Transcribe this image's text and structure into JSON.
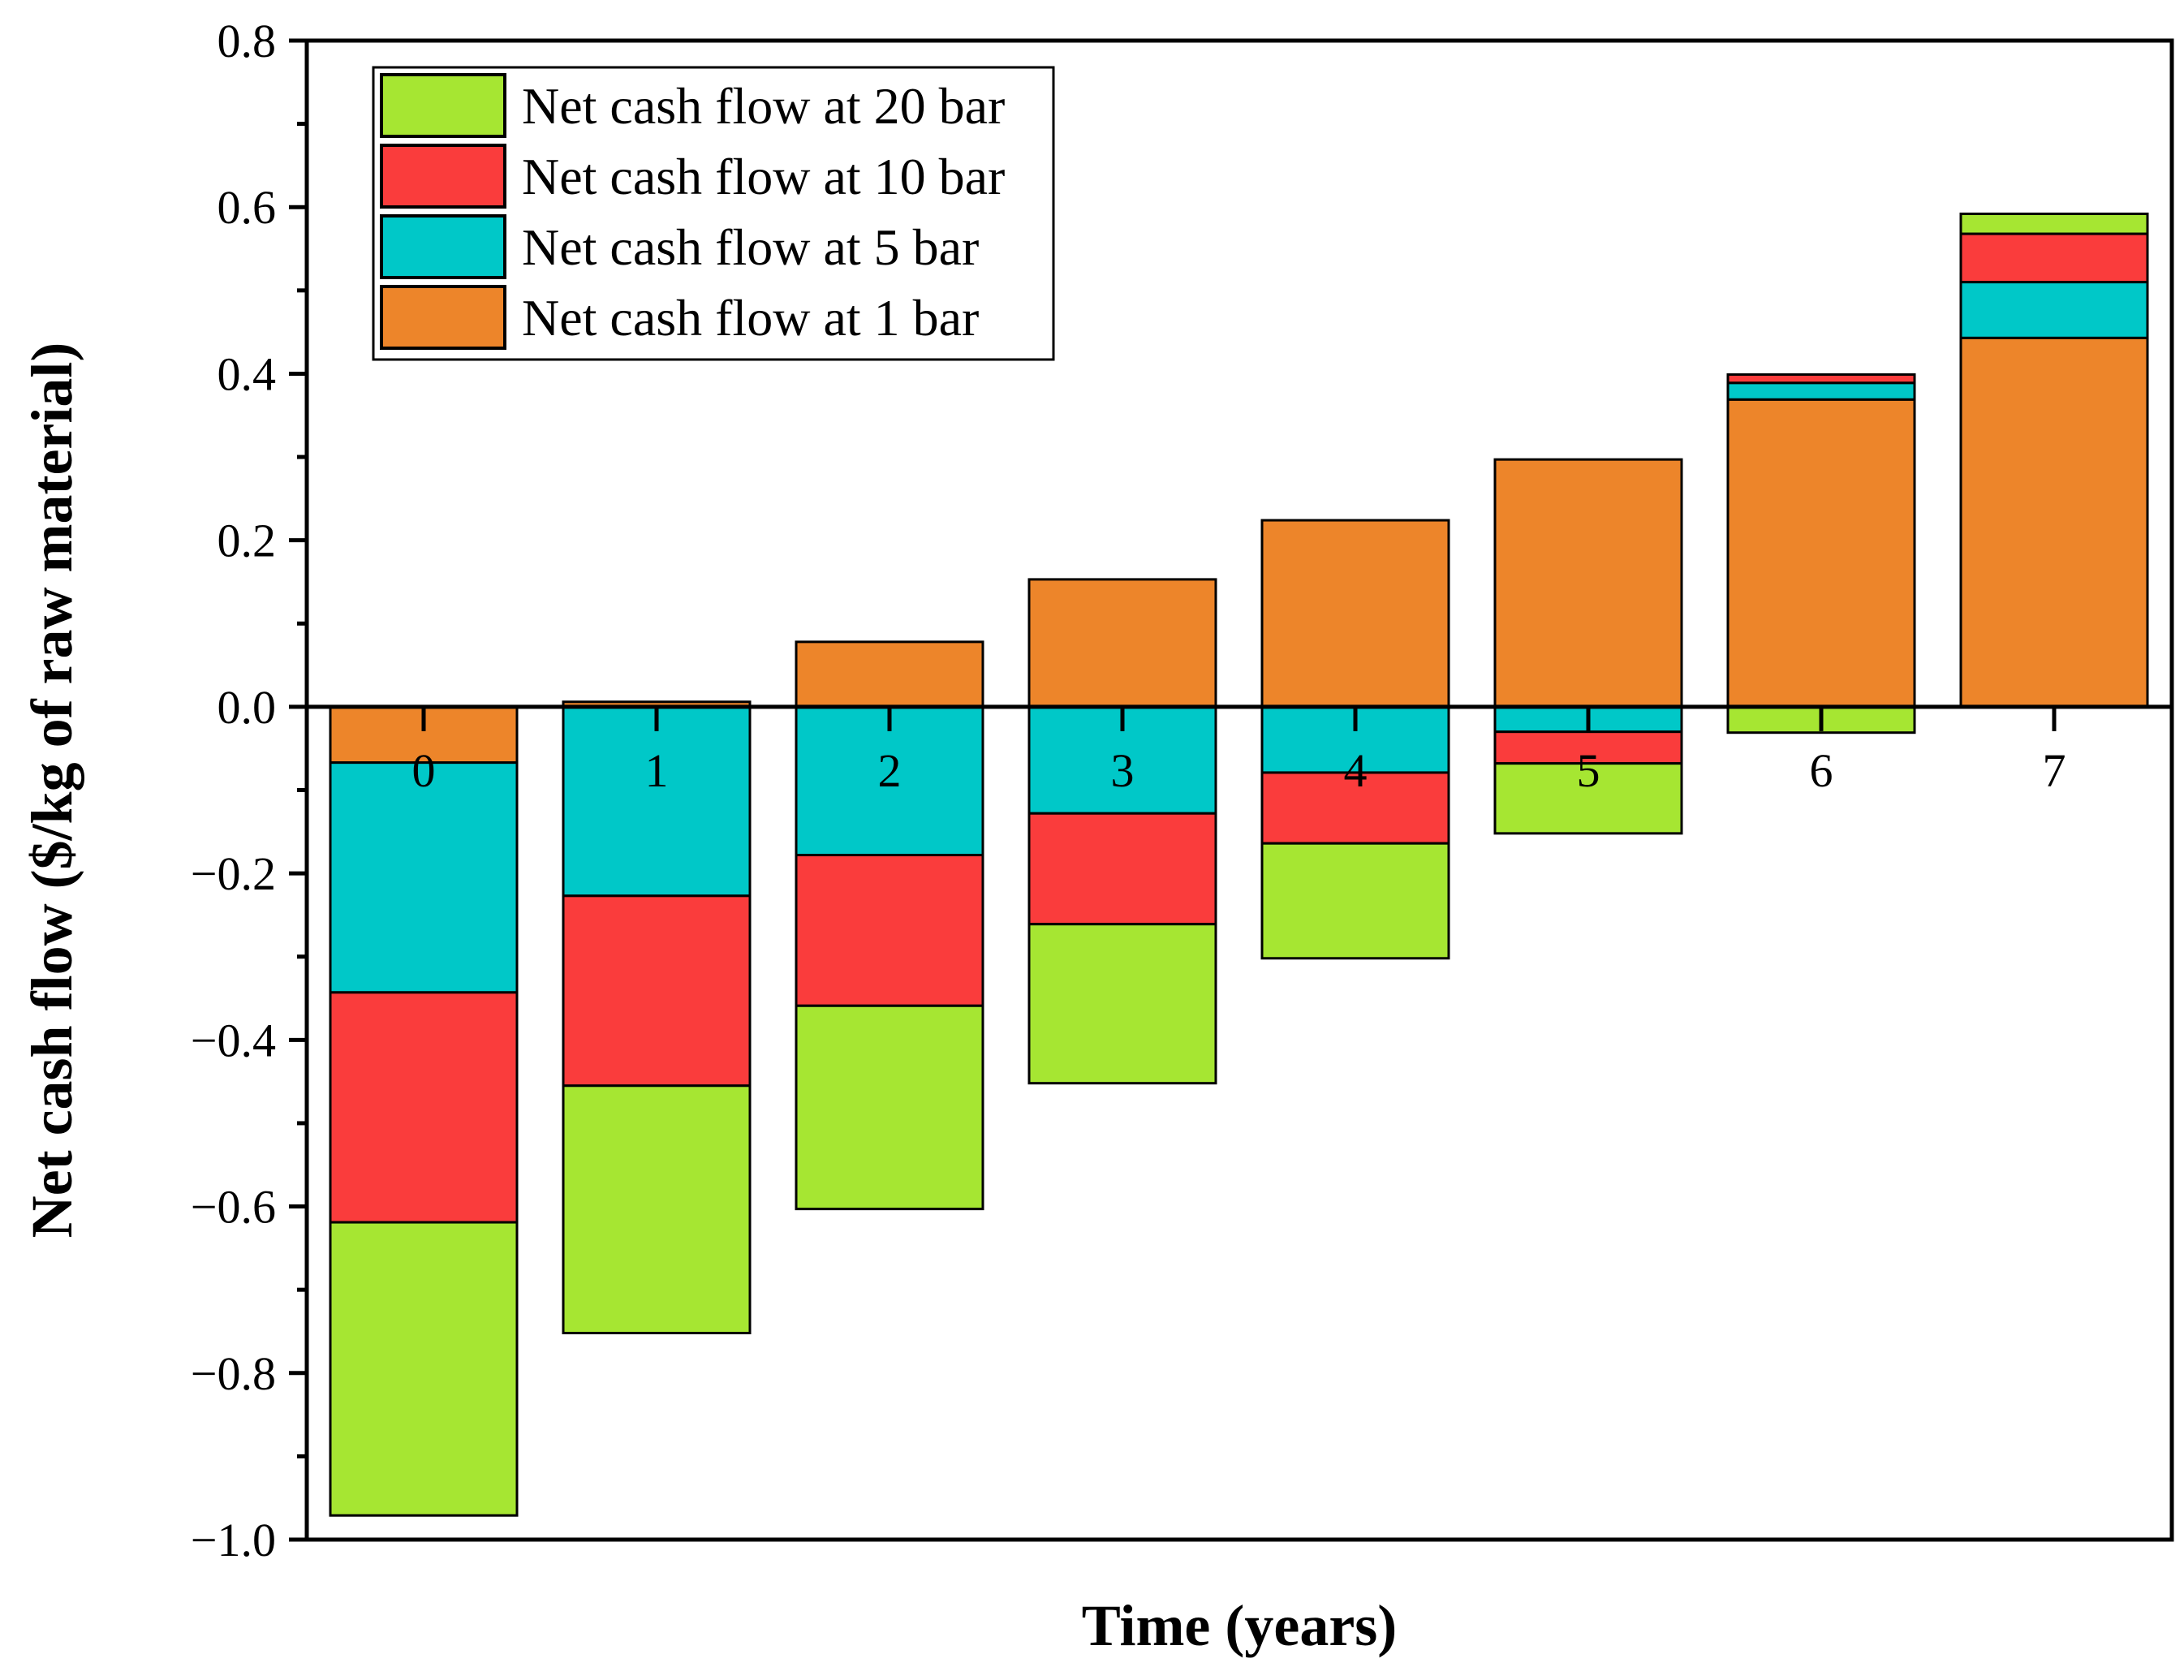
{
  "chart_data": {
    "type": "bar",
    "stacked": true,
    "xlabel": "Time (years)",
    "ylabel": "Net cash flow ($/kg of raw material)",
    "ylim": [
      -1.0,
      0.8
    ],
    "yticks": [
      "0.8",
      "0.6",
      "0.4",
      "0.2",
      "0.0",
      "−0.2",
      "−0.4",
      "−0.6",
      "−0.8",
      "−1.0"
    ],
    "ytick_values": [
      0.8,
      0.6,
      0.4,
      0.2,
      0.0,
      -0.2,
      -0.4,
      -0.6,
      -0.8,
      -1.0
    ],
    "categories": [
      "0",
      "1",
      "2",
      "3",
      "4",
      "5",
      "6",
      "7"
    ],
    "legend_position": "top-left",
    "series": [
      {
        "name": "Net cash flow at 1 bar",
        "color": "#ED852A",
        "values": [
          -0.067,
          0.006,
          0.078,
          0.153,
          0.224,
          0.297,
          0.369,
          0.443
        ]
      },
      {
        "name": "Net cash flow at 5 bar",
        "color": "#00C8C8",
        "values": [
          -0.276,
          -0.227,
          -0.178,
          -0.128,
          -0.079,
          -0.03,
          0.02,
          0.067
        ]
      },
      {
        "name": "Net cash flow at 10 bar",
        "color": "#FA3C3C",
        "values": [
          -0.276,
          -0.228,
          -0.181,
          -0.133,
          -0.085,
          -0.038,
          0.01,
          0.058
        ]
      },
      {
        "name": "Net cash flow at 20 bar",
        "color": "#A6E632",
        "values": [
          -0.352,
          -0.297,
          -0.244,
          -0.191,
          -0.138,
          -0.084,
          -0.031,
          0.024
        ]
      }
    ]
  }
}
